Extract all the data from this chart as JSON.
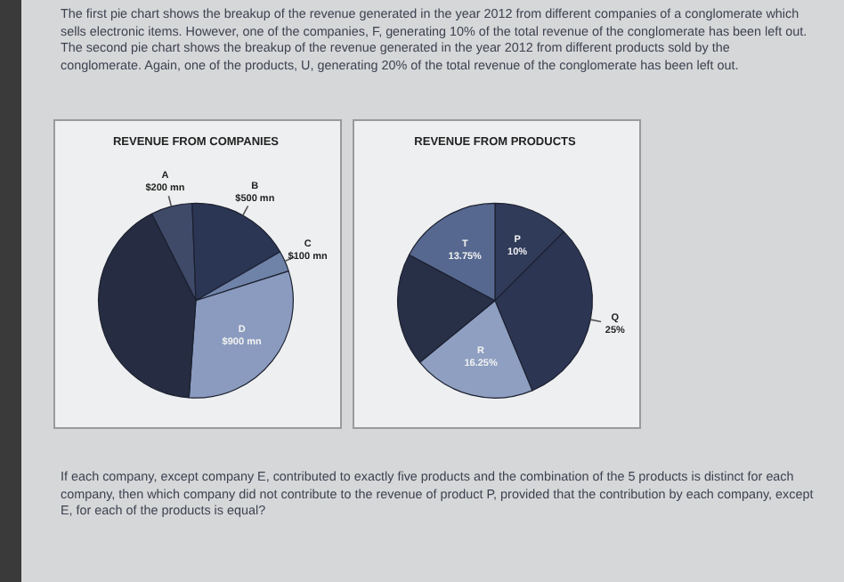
{
  "chart_data": [
    {
      "type": "pie",
      "title": "REVENUE FROM COMPANIES",
      "categories": [
        "A",
        "B",
        "C",
        "D",
        null
      ],
      "values": [
        200,
        500,
        100,
        900,
        1200
      ],
      "value_labels": [
        "$200 mn",
        "$500 mn",
        "$100 mn",
        "$900 mn",
        null
      ],
      "colors": [
        "#3e4a68",
        "#2b3654",
        "#6f82a8",
        "#8a9bbf",
        "#262d42"
      ],
      "annotations": [
        "The first pie chart shows the breakup of the revenue generated in the year 2012 from different companies of a conglomerate which sells electronic items. However, one of the companies, F, generating 10% of the total revenue of the conglomerate has been left out. The second pie chart shows the breakup of the revenue generated in the year 2012 from different products sold by the conglomerate. Again, one of the products, U, generating 20% of the total revenue of the conglomerate has been left out."
      ]
    },
    {
      "type": "pie",
      "title": "REVENUE FROM PRODUCTS",
      "categories": [
        "P",
        "Q",
        "R",
        null,
        "T"
      ],
      "values": [
        10,
        25,
        16.25,
        15,
        13.75
      ],
      "value_labels": [
        "10%",
        "25%",
        "16.25%",
        null,
        "13.75%"
      ],
      "colors": [
        "#303b5a",
        "#2c3653",
        "#8e9fc1",
        "#283048",
        "#56688f"
      ],
      "annotations": [
        "If each company, except company E, contributed to exactly five products and the combination of the 5 products is distinct for each company, then which company did not contribute to the revenue of product P, provided that the contribution by each company, except E, for each of the products is equal?"
      ]
    }
  ]
}
